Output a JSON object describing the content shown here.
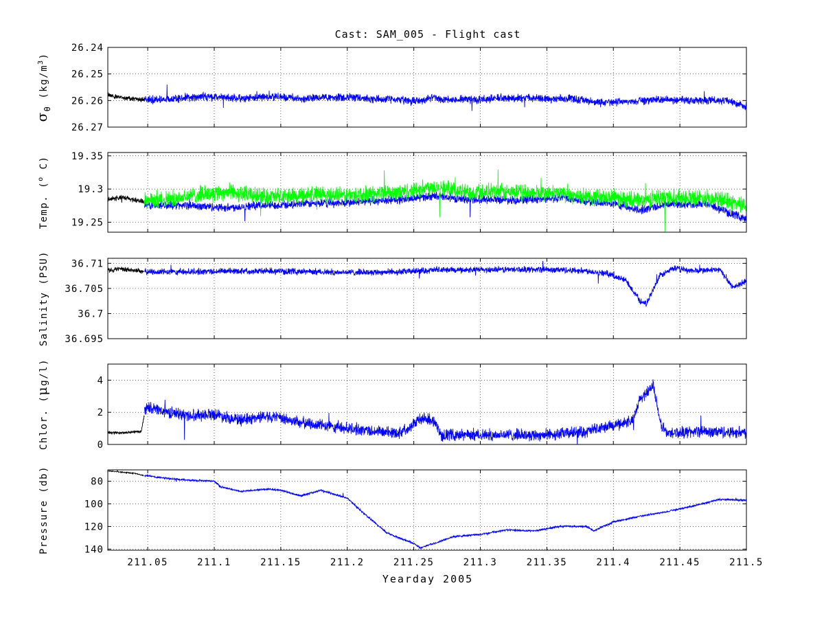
{
  "chart_data": {
    "type": "line",
    "title": "Cast: SAM_005 - Flight cast",
    "xlabel": "Yearday 2005",
    "xlim": [
      211.02,
      211.5
    ],
    "x_ticks": [
      211.05,
      211.1,
      211.15,
      211.2,
      211.25,
      211.3,
      211.35,
      211.4,
      211.45,
      211.5
    ],
    "x_tick_labels": [
      "211.05",
      "211.1",
      "211.15",
      "211.2",
      "211.25",
      "211.3",
      "211.35",
      "211.4",
      "211.45",
      "211.5"
    ],
    "grid": true,
    "colors": {
      "black": "#000000",
      "blue": "#0000ff",
      "green": "#00ff00"
    },
    "panels": [
      {
        "key": "sigma",
        "ylabel_parts": [
          "σ",
          "θ",
          " (kg/m",
          "3",
          ")"
        ],
        "ylim": [
          26.24,
          26.27
        ],
        "reversed": true,
        "y_ticks": [
          26.24,
          26.25,
          26.26,
          26.27
        ],
        "y_tick_labels": [
          "26.24",
          "26.25",
          "26.26",
          "26.27"
        ],
        "series": [
          {
            "color": "black",
            "x": [
              211.02,
              211.026,
              211.032,
              211.038,
              211.044,
              211.0475
            ],
            "y": [
              26.2576,
              26.2586,
              26.2589,
              26.2592,
              26.2596,
              26.2598
            ],
            "noise": 0.0009
          },
          {
            "color": "blue",
            "x": [
              211.0475,
              211.06,
              211.075,
              211.09,
              211.1,
              211.11,
              211.12,
              211.135,
              211.15,
              211.165,
              211.18,
              211.2,
              211.22,
              211.24,
              211.255,
              211.265,
              211.27,
              211.285,
              211.3,
              211.315,
              211.33,
              211.35,
              211.37,
              211.39,
              211.41,
              211.43,
              211.45,
              211.47,
              211.485,
              211.5
            ],
            "y": [
              26.2596,
              26.2598,
              26.2592,
              26.2585,
              26.2586,
              26.259,
              26.2592,
              26.2588,
              26.2585,
              26.2592,
              26.259,
              26.2588,
              26.2594,
              26.2598,
              26.2602,
              26.2588,
              26.2598,
              26.2596,
              26.2598,
              26.259,
              26.2592,
              26.2592,
              26.2594,
              26.2608,
              26.2605,
              26.2598,
              26.2598,
              26.26,
              26.2598,
              26.2625
            ],
            "noise": 0.0014
          }
        ]
      },
      {
        "key": "temp",
        "ylabel_parts": [
          "Temp. (",
          "o",
          " C)"
        ],
        "ylim": [
          19.235,
          19.355
        ],
        "reversed": false,
        "y_ticks": [
          19.25,
          19.3,
          19.35
        ],
        "y_tick_labels": [
          "19.25",
          "19.3",
          "19.35"
        ],
        "series": [
          {
            "color": "black",
            "x": [
              211.02,
              211.03,
              211.04,
              211.047
            ],
            "y": [
              19.285,
              19.287,
              19.284,
              19.281
            ],
            "noise": 0.004
          },
          {
            "color": "blue",
            "x": [
              211.0475,
              211.07,
              211.09,
              211.11,
              211.13,
              211.15,
              211.17,
              211.2,
              211.22,
              211.24,
              211.265,
              211.29,
              211.31,
              211.33,
              211.36,
              211.38,
              211.4,
              211.42,
              211.44,
              211.47,
              211.49,
              211.5
            ],
            "y": [
              19.275,
              19.276,
              19.274,
              19.272,
              19.275,
              19.276,
              19.278,
              19.279,
              19.282,
              19.284,
              19.29,
              19.284,
              19.285,
              19.283,
              19.287,
              19.281,
              19.278,
              19.268,
              19.277,
              19.278,
              19.262,
              19.255
            ],
            "noise": 0.006
          },
          {
            "color": "green",
            "x": [
              211.0475,
              211.07,
              211.09,
              211.11,
              211.13,
              211.15,
              211.17,
              211.2,
              211.22,
              211.24,
              211.265,
              211.29,
              211.31,
              211.33,
              211.36,
              211.38,
              211.4,
              211.42,
              211.44,
              211.47,
              211.49,
              211.5
            ],
            "y": [
              19.282,
              19.286,
              19.292,
              19.296,
              19.29,
              19.288,
              19.292,
              19.29,
              19.293,
              19.295,
              19.304,
              19.295,
              19.296,
              19.294,
              19.293,
              19.288,
              19.287,
              19.283,
              19.288,
              19.287,
              19.28,
              19.275
            ],
            "noise": 0.012
          }
        ]
      },
      {
        "key": "salinity",
        "ylabel_parts": [
          "Salinity (PSU)"
        ],
        "ylim": [
          36.695,
          36.711
        ],
        "reversed": false,
        "y_ticks": [
          36.695,
          36.7,
          36.705,
          36.71
        ],
        "y_tick_labels": [
          "36.695",
          "36.7",
          "36.705",
          "36.71"
        ],
        "series": [
          {
            "color": "black",
            "x": [
              211.02,
              211.03,
              211.04,
              211.047
            ],
            "y": [
              36.7087,
              36.7088,
              36.7086,
              36.7084
            ],
            "noise": 0.0005
          },
          {
            "color": "blue",
            "x": [
              211.0475,
              211.08,
              211.12,
              211.16,
              211.2,
              211.24,
              211.27,
              211.3,
              211.33,
              211.36,
              211.38,
              211.395,
              211.41,
              211.42,
              211.425,
              211.435,
              211.445,
              211.46,
              211.48,
              211.49,
              211.5
            ],
            "y": [
              36.7083,
              36.7083,
              36.7085,
              36.7084,
              36.7082,
              36.7083,
              36.7087,
              36.7087,
              36.7088,
              36.7087,
              36.7085,
              36.708,
              36.7065,
              36.7025,
              36.702,
              36.7075,
              36.709,
              36.7085,
              36.7087,
              36.7052,
              36.7065
            ],
            "noise": 0.0006
          }
        ]
      },
      {
        "key": "chlor",
        "ylabel_parts": [
          "Chlor. (",
          "μ",
          "g/l)"
        ],
        "ylim": [
          0,
          5
        ],
        "reversed": false,
        "y_ticks": [
          0,
          2,
          4
        ],
        "y_tick_labels": [
          "0",
          "2",
          "4"
        ],
        "series": [
          {
            "color": "black",
            "x": [
              211.02,
              211.03,
              211.04,
              211.045,
              211.0475
            ],
            "y": [
              0.75,
              0.72,
              0.78,
              0.8,
              1.8
            ],
            "noise": 0.08
          },
          {
            "color": "blue",
            "x": [
              211.0475,
              211.05,
              211.06,
              211.08,
              211.1,
              211.12,
              211.14,
              211.15,
              211.17,
              211.2,
              211.23,
              211.24,
              211.255,
              211.265,
              211.27,
              211.3,
              211.35,
              211.38,
              211.4,
              211.415,
              211.42,
              211.43,
              211.435,
              211.44,
              211.46,
              211.47,
              211.5
            ],
            "y": [
              2.2,
              2.3,
              2.1,
              1.8,
              1.9,
              1.5,
              1.8,
              1.6,
              1.3,
              1.0,
              0.75,
              0.75,
              1.6,
              1.5,
              0.6,
              0.6,
              0.6,
              0.8,
              1.2,
              1.5,
              2.8,
              3.7,
              1.4,
              0.7,
              0.8,
              0.8,
              0.75
            ],
            "noise": 0.35
          }
        ]
      },
      {
        "key": "pressure",
        "ylabel_parts": [
          "Pressure (db)"
        ],
        "ylim": [
          70,
          141
        ],
        "reversed": true,
        "y_ticks": [
          80,
          100,
          120,
          140
        ],
        "y_tick_labels": [
          "80",
          "100",
          "120",
          "140"
        ],
        "series": [
          {
            "color": "black",
            "x": [
              211.02,
              211.03,
              211.04,
              211.047
            ],
            "y": [
              71,
              72,
              73,
              75
            ],
            "noise": 0.4
          },
          {
            "color": "blue",
            "x": [
              211.0475,
              211.06,
              211.08,
              211.1,
              211.105,
              211.12,
              211.14,
              211.15,
              211.165,
              211.18,
              211.2,
              211.21,
              211.23,
              211.25,
              211.255,
              211.265,
              211.28,
              211.3,
              211.32,
              211.34,
              211.36,
              211.38,
              211.385,
              211.4,
              211.42,
              211.44,
              211.46,
              211.48,
              211.5
            ],
            "y": [
              75,
              77,
              79,
              80,
              85,
              89,
              87,
              88,
              93,
              88,
              95,
              106,
              126,
              135,
              139,
              135,
              129,
              127,
              123,
              124,
              120,
              120,
              124,
              116,
              111,
              107,
              102,
              96,
              97
            ],
            "noise": 0.8
          }
        ]
      }
    ]
  }
}
